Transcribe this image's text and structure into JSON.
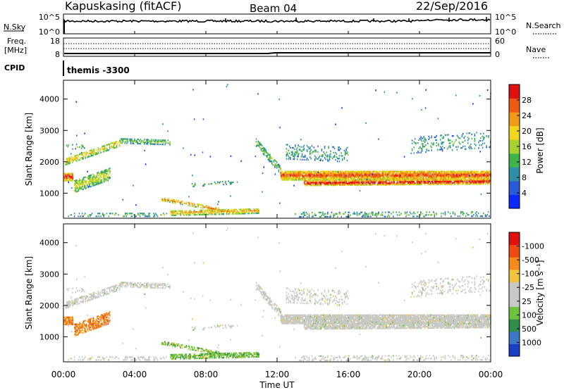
{
  "header": {
    "station": "Kapuskasing (fitACF)",
    "beam": "Beam 04",
    "date": "22/Sep/2016"
  },
  "top_panels": {
    "nsky_label": "N.Sky",
    "nsky_ticks": [
      "10^5",
      "10^0"
    ],
    "nsearch_label": "N.Search",
    "nsearch_ticks": [
      "10^5",
      "10^0"
    ],
    "freq_label": "Freq.",
    "freq_unit": "[MHz]",
    "freq_ticks": [
      "18",
      "8"
    ],
    "nave_label": "Nave",
    "nave_ticks": [
      "60",
      "0"
    ],
    "cpid_label": "CPID",
    "cpid_value": "themis -3300"
  },
  "chart_data": [
    {
      "type": "heatmap",
      "title": "",
      "ylabel": "Slant Range [km]",
      "ylim": [
        200,
        4600
      ],
      "yticks": [
        1000,
        2000,
        3000,
        4000
      ],
      "xlim": [
        0,
        24
      ],
      "colorbar": {
        "label": "Power [dB]",
        "ticks": [
          "4",
          "8",
          "12",
          "16",
          "20",
          "24",
          "28"
        ],
        "colors": [
          "#0a28ff",
          "#2a5ad8",
          "#2f8fa8",
          "#3fb44a",
          "#a6d230",
          "#f2d51e",
          "#f29a18",
          "#ee5a14",
          "#e01010"
        ]
      }
    },
    {
      "type": "heatmap",
      "title": "",
      "ylabel": "Slant Range [km]",
      "ylim": [
        200,
        4600
      ],
      "yticks": [
        1000,
        2000,
        3000,
        4000
      ],
      "xlim": [
        0,
        24
      ],
      "xlabel": "Time UT",
      "xticks": [
        "00:00",
        "04:00",
        "08:00",
        "12:00",
        "16:00",
        "20:00",
        "00:00"
      ],
      "colorbar": {
        "label": "Velocity [m s⁻¹]",
        "ticks": [
          "1000",
          "500",
          "100",
          "25",
          "-25",
          "-100",
          "-500",
          "-1000"
        ],
        "colors": [
          "#1c3fc8",
          "#3d78c8",
          "#2f8c4a",
          "#6cc43c",
          "#c8c8c4",
          "#c8c8c4",
          "#f2c43c",
          "#f28a1c",
          "#ee4a14",
          "#e01010"
        ]
      }
    }
  ]
}
